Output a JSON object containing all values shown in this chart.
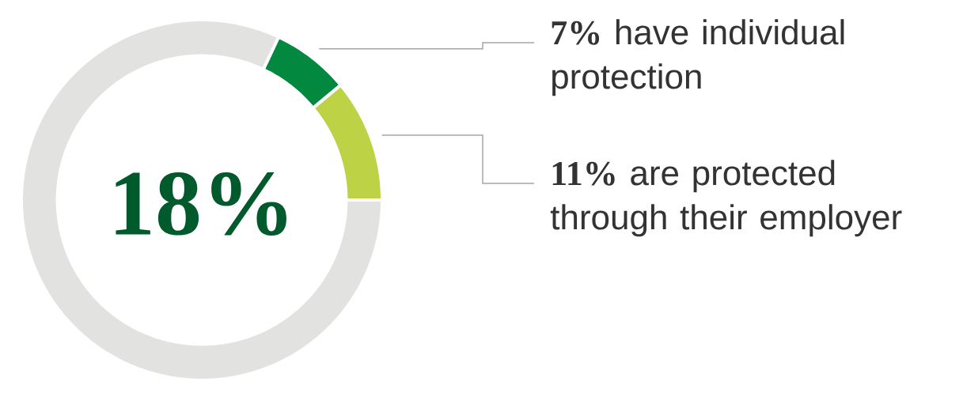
{
  "chart_data": {
    "type": "donut",
    "categories": [
      "**7%** have individual protection",
      "**11%** are protected through their employer",
      null
    ],
    "values": [
      7,
      11,
      82
    ],
    "colors": [
      "#03893f",
      "#bdd245",
      "#e2e2e1"
    ],
    "annotations": [
      "18%"
    ]
  }
}
